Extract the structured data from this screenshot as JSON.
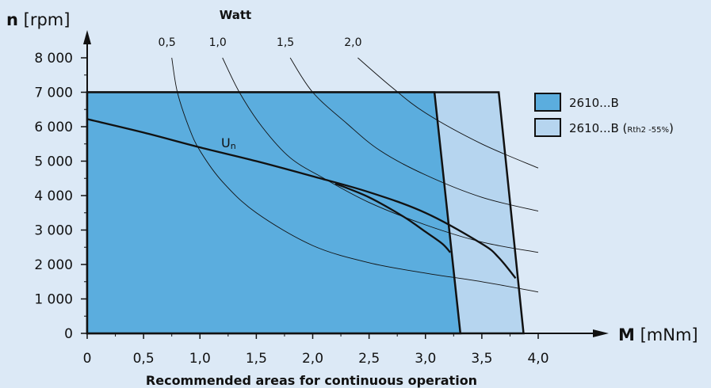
{
  "chart_data": {
    "type": "area",
    "title": "Recommended areas for continuous operation",
    "xlabel": {
      "bold": "M",
      "unit": "[mNm]"
    },
    "ylabel": {
      "bold": "n",
      "unit": "[rpm]"
    },
    "xlim": [
      0,
      4.25
    ],
    "ylim": [
      0,
      8500
    ],
    "xticks": [
      {
        "value": 0,
        "label": "0"
      },
      {
        "value": 0.5,
        "label": "0,5"
      },
      {
        "value": 1.0,
        "label": "1,0"
      },
      {
        "value": 1.5,
        "label": "1,5"
      },
      {
        "value": 2.0,
        "label": "2,0"
      },
      {
        "value": 2.5,
        "label": "2,5"
      },
      {
        "value": 3.0,
        "label": "3,0"
      },
      {
        "value": 3.5,
        "label": "3,5"
      },
      {
        "value": 4.0,
        "label": "4,0"
      }
    ],
    "yticks": [
      {
        "value": 0,
        "label": "0"
      },
      {
        "value": 1000,
        "label": "1 000"
      },
      {
        "value": 2000,
        "label": "2 000"
      },
      {
        "value": 3000,
        "label": "3 000"
      },
      {
        "value": 4000,
        "label": "4 000"
      },
      {
        "value": 5000,
        "label": "5 000"
      },
      {
        "value": 6000,
        "label": "6 000"
      },
      {
        "value": 7000,
        "label": "7 000"
      },
      {
        "value": 8000,
        "label": "8 000"
      }
    ],
    "areas": [
      {
        "name": "2610...B (Rth2 -55%)",
        "legend_text": "2610...B (",
        "legend_sub": "Rth2 -55%",
        "legend_tail": ")",
        "color": "#b6d5ef",
        "polygon": [
          [
            0,
            0
          ],
          [
            3.87,
            0
          ],
          [
            3.65,
            7000
          ],
          [
            0,
            7000
          ]
        ]
      },
      {
        "name": "2610...B",
        "legend_text": "2610...B",
        "color": "#5badde",
        "polygon": [
          [
            0,
            0
          ],
          [
            3.31,
            0
          ],
          [
            3.08,
            7000
          ],
          [
            0,
            7000
          ]
        ]
      }
    ],
    "un_label": {
      "main": "U",
      "sub": "n"
    },
    "un_line": [
      [
        0,
        6220
      ],
      [
        0.5,
        5830
      ],
      [
        1.0,
        5400
      ],
      [
        1.5,
        5000
      ],
      [
        2.0,
        4560
      ],
      [
        2.5,
        4100
      ],
      [
        3.0,
        3500
      ],
      [
        3.5,
        2600
      ],
      [
        3.65,
        2200
      ],
      [
        3.8,
        1600
      ]
    ],
    "un_branch": [
      [
        2.2,
        4350
      ],
      [
        2.5,
        3950
      ],
      [
        2.8,
        3400
      ],
      [
        3.0,
        2950
      ],
      [
        3.15,
        2600
      ],
      [
        3.22,
        2350
      ]
    ],
    "power_label": "Watt",
    "power_curves": [
      {
        "label": "0,5",
        "points": [
          [
            0.75,
            8000
          ],
          [
            0.8,
            7000
          ],
          [
            0.9,
            6000
          ],
          [
            1.0,
            5300
          ],
          [
            1.2,
            4400
          ],
          [
            1.5,
            3500
          ],
          [
            2.0,
            2550
          ],
          [
            2.5,
            2050
          ],
          [
            3.0,
            1750
          ],
          [
            3.5,
            1500
          ],
          [
            4.0,
            1200
          ]
        ]
      },
      {
        "label": "1,0",
        "points": [
          [
            1.2,
            8000
          ],
          [
            1.35,
            7000
          ],
          [
            1.55,
            6000
          ],
          [
            1.8,
            5100
          ],
          [
            2.1,
            4500
          ],
          [
            2.5,
            3800
          ],
          [
            3.0,
            3150
          ],
          [
            3.5,
            2650
          ],
          [
            4.0,
            2350
          ]
        ]
      },
      {
        "label": "1,5",
        "points": [
          [
            1.8,
            8000
          ],
          [
            2.0,
            7000
          ],
          [
            2.3,
            6100
          ],
          [
            2.6,
            5300
          ],
          [
            3.0,
            4600
          ],
          [
            3.5,
            3950
          ],
          [
            4.0,
            3550
          ]
        ]
      },
      {
        "label": "2,0",
        "points": [
          [
            2.4,
            8000
          ],
          [
            2.7,
            7150
          ],
          [
            3.0,
            6400
          ],
          [
            3.5,
            5500
          ],
          [
            4.0,
            4800
          ]
        ]
      }
    ]
  }
}
